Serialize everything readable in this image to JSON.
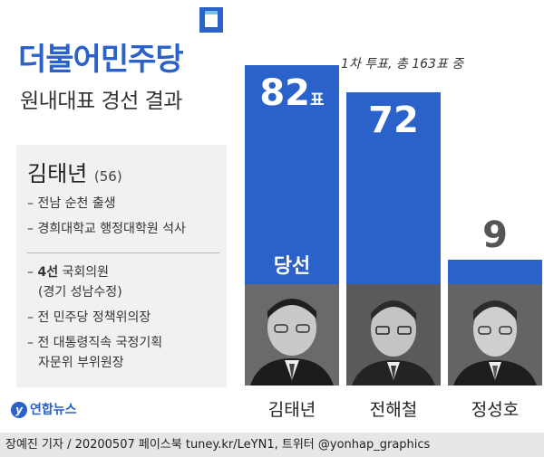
{
  "header": {
    "party": "더불어민주당",
    "subtitle": "원내대표 경선 결과",
    "vote_info": "1차 투표, 총 163표 중"
  },
  "profile": {
    "name": "김태년",
    "age": "(56)",
    "items": [
      "– 전남 순천 출생",
      "– 경희대학교 행정대학원 석사"
    ],
    "career": {
      "term_bold": "4선",
      "term_rest": " 국회의원",
      "district": "(경기 성남수정)",
      "policy": "– 전 민주당 정책위의장",
      "bluehouse_1": "– 전 대통령직속 국정기획",
      "bluehouse_2": "자문위 부위원장",
      "dash": "– "
    }
  },
  "chart_data": {
    "type": "bar",
    "categories": [
      "김태년",
      "전해철",
      "정성호"
    ],
    "values": [
      82,
      72,
      9
    ],
    "value_labels": [
      "82",
      "72",
      "9"
    ],
    "unit": "표",
    "elected_label": "당선",
    "ylim": [
      0,
      82
    ],
    "bar_color": "#2a62c9",
    "grid": false
  },
  "photos": [
    "portrait-kim",
    "portrait-jeon",
    "portrait-jeong"
  ],
  "branding": {
    "agency": "연합뉴스",
    "agency_glyph": "y",
    "accent": "#2a62c9"
  },
  "footer": {
    "credit": "장예진 기자 / 20200507 페이스북 tuney.kr/LeYN1, 트위터 @yonhap_graphics"
  }
}
